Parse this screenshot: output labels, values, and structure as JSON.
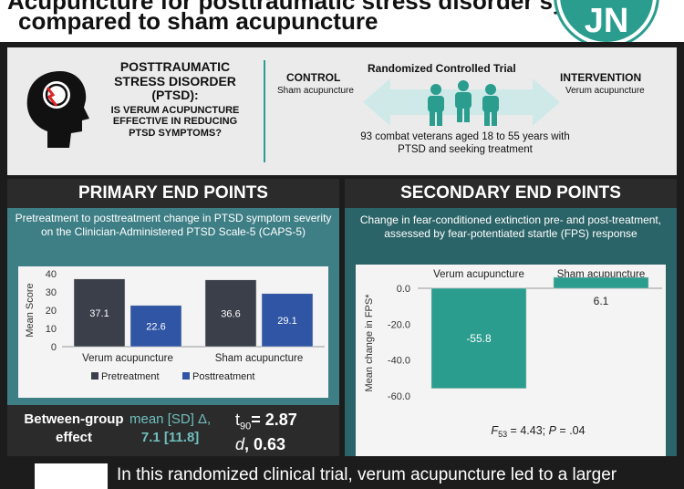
{
  "header": {
    "title_line1": "Acupuncture for posttraumatic stress disorder symptoms",
    "title_line2": "compared to sham acupuncture",
    "logo_text": "JN"
  },
  "design": {
    "question_line1": "POSTTRAUMATIC STRESS DISORDER (PTSD):",
    "question_line2": "IS VERUM ACUPUNCTURE EFFECTIVE IN REDUCING PTSD SYMPTOMS?",
    "control_title": "CONTROL",
    "control_sub": "Sham acupuncture",
    "rct_title": "Randomized Controlled Trial",
    "intervention_title": "INTERVENTION",
    "intervention_sub": "Verum acupuncture",
    "population": "93 combat veterans aged 18 to 55 years with PTSD and seeking treatment"
  },
  "colors": {
    "teal": "#2a9d8f",
    "pretreatment": "#3a3f4a",
    "posttreatment": "#2f55a4",
    "verum_bar": "#2a9d8f"
  },
  "primary": {
    "heading": "PRIMARY END POINTS",
    "description": "Pretreatment to posttreatment change in PTSD symptom severity on the Clinician-Administered PTSD Scale-5 (CAPS-5)",
    "effect_label": "Between-group effect",
    "effect_mean_label": "mean [SD] Δ,",
    "effect_mean_value": "7.1 [11.8]",
    "t_label": "t",
    "t_sub": "90",
    "t_value": "= 2.87",
    "d_label": "d",
    "d_value": ", 0.63"
  },
  "secondary": {
    "heading": "SECONDARY END POINTS",
    "description": "Change in fear-conditioned extinction pre- and post-treatment, assessed by fear-potentiated startle (FPS) response",
    "stat_f": "F",
    "stat_sub": "53",
    "stat_rest": " = 4.43; ",
    "stat_p": "P",
    "stat_p_rest": " = .04"
  },
  "chart_data": [
    {
      "type": "bar",
      "categories": [
        "Verum acupuncture",
        "Sham acupuncture"
      ],
      "series": [
        {
          "name": "Pretreatment",
          "values": [
            37.1,
            36.6
          ]
        },
        {
          "name": "Posttreatment",
          "values": [
            22.6,
            29.1
          ]
        }
      ],
      "ylabel": "Mean Score",
      "ylim": [
        0,
        40
      ],
      "yticks": [
        "0",
        "10",
        "20",
        "30",
        "40"
      ],
      "legend": "bottom"
    },
    {
      "type": "bar",
      "categories": [
        "Verum acupuncture",
        "Sham acupuncture"
      ],
      "values": [
        -55.8,
        6.1
      ],
      "ylabel": "Mean change in FPS*",
      "ylim": [
        -60,
        0
      ],
      "yticks": [
        "0.0",
        "-20.0",
        "-40.0",
        "-60.0"
      ]
    }
  ],
  "bottom": {
    "text": "In this randomized clinical trial, verum acupuncture led to a larger"
  }
}
